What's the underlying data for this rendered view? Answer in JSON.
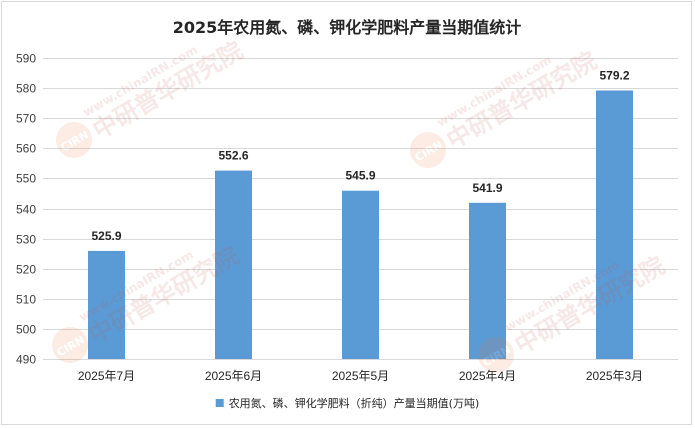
{
  "chart_data": {
    "type": "bar",
    "title": "2025年农用氮、磷、钾化学肥料产量当期值统计",
    "categories": [
      "2025年7月",
      "2025年6月",
      "2025年5月",
      "2025年4月",
      "2025年3月"
    ],
    "series": [
      {
        "name": "农用氮、磷、钾化学肥料（折纯）产量当期值(万吨)",
        "values": [
          525.9,
          552.6,
          545.9,
          541.9,
          579.2
        ],
        "color": "#5b9bd5"
      }
    ],
    "data_labels": [
      "525.9",
      "552.6",
      "545.9",
      "541.9",
      "579.2"
    ],
    "ylim": [
      490,
      590
    ],
    "yticks": [
      "490",
      "500",
      "510",
      "520",
      "530",
      "540",
      "550",
      "560",
      "570",
      "580",
      "590"
    ],
    "grid": true,
    "legend_position": "bottom"
  },
  "watermark": {
    "text": "www.chinaIRN.com",
    "brand": "中研普华研究院",
    "badge": "CIRN"
  }
}
